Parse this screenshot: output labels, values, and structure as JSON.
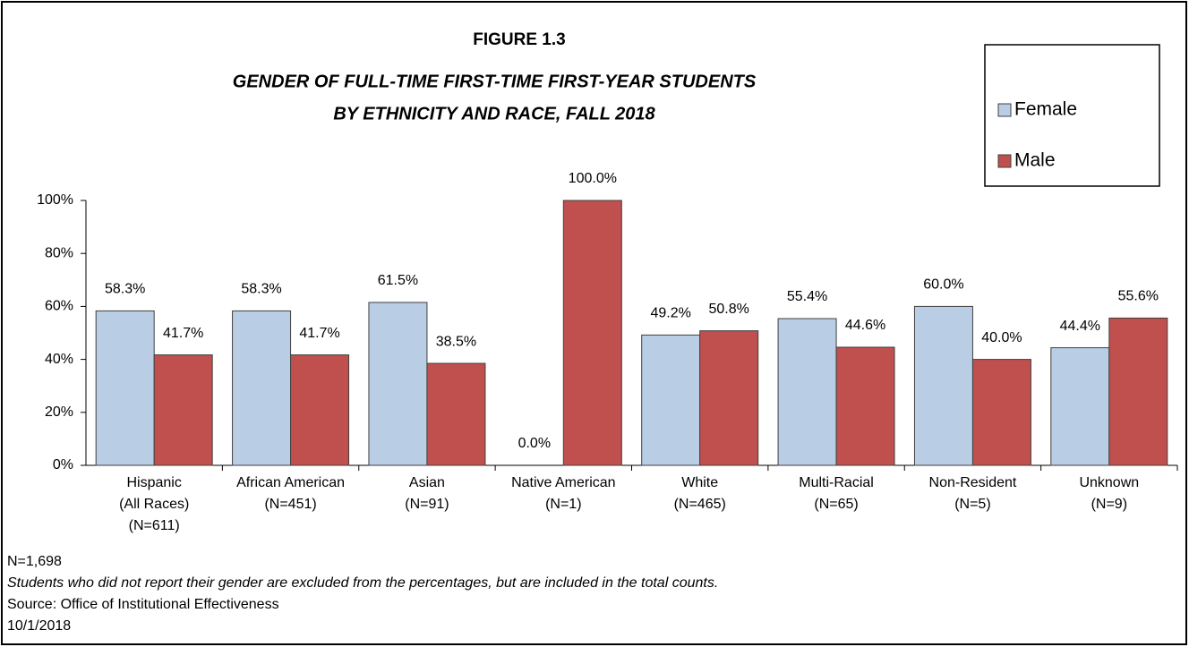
{
  "chart_data": {
    "type": "bar",
    "figure_label": "FIGURE 1.3",
    "title": [
      "GENDER OF FULL-TIME FIRST-TIME FIRST-YEAR STUDENTS",
      "BY ETHNICITY AND RACE, FALL 2018"
    ],
    "categories": [
      [
        "Hispanic",
        "(All Races)",
        "(N=611)"
      ],
      [
        "African American",
        "(N=451)"
      ],
      [
        "Asian",
        "(N=91)"
      ],
      [
        "Native American",
        "(N=1)"
      ],
      [
        "White",
        "(N=465)"
      ],
      [
        "Multi-Racial",
        "(N=65)"
      ],
      [
        "Non-Resident",
        "(N=5)"
      ],
      [
        "Unknown",
        "(N=9)"
      ]
    ],
    "series": [
      {
        "name": "Female",
        "color": "#b9cde5",
        "values": [
          58.3,
          58.3,
          61.5,
          0,
          49.2,
          55.4,
          60,
          44.4
        ],
        "value_labels": [
          "58.3%",
          "58.3%",
          "61.5%",
          "0.0%",
          "49.2%",
          "55.4%",
          "60.0%",
          "44.4%"
        ]
      },
      {
        "name": "Male",
        "color": "#c0504d",
        "values": [
          41.7,
          41.7,
          38.5,
          100,
          50.8,
          44.6,
          40,
          55.6
        ],
        "value_labels": [
          "41.7%",
          "41.7%",
          "38.5%",
          "100.0%",
          "50.8%",
          "44.6%",
          "40.0%",
          "55.6%"
        ]
      }
    ],
    "ylim": [
      0,
      100
    ],
    "yticks": [
      {
        "value": 0,
        "label": "0%"
      },
      {
        "value": 20,
        "label": "20%"
      },
      {
        "value": 40,
        "label": "40%"
      },
      {
        "value": 60,
        "label": "60%"
      },
      {
        "value": 80,
        "label": "80%"
      },
      {
        "value": 100,
        "label": "100%"
      }
    ],
    "legend": "top-right",
    "notes": [
      "N=1,698",
      "Students who did not report their gender are excluded from the percentages, but are included in the total counts.",
      "Source: Office of Institutional Effectiveness",
      "10/1/2018"
    ]
  }
}
